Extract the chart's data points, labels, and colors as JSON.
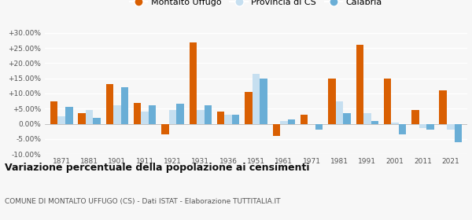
{
  "years": [
    1871,
    1881,
    1901,
    1911,
    1921,
    1931,
    1936,
    1951,
    1961,
    1971,
    1981,
    1991,
    2001,
    2011,
    2021
  ],
  "montalto": [
    7.5,
    3.5,
    13.0,
    7.0,
    -3.5,
    27.0,
    4.0,
    10.5,
    -4.0,
    3.0,
    15.0,
    26.0,
    15.0,
    4.5,
    11.0
  ],
  "provincia_cs": [
    2.5,
    4.5,
    6.0,
    4.0,
    4.5,
    4.5,
    3.0,
    16.5,
    1.0,
    0.0,
    7.5,
    3.5,
    0.5,
    -1.5,
    -2.0
  ],
  "calabria": [
    5.5,
    2.0,
    12.0,
    6.0,
    6.5,
    6.0,
    3.0,
    15.0,
    1.5,
    -2.0,
    3.5,
    1.0,
    -3.5,
    -2.0,
    -6.0
  ],
  "montalto_color": "#d95f02",
  "provincia_color": "#c6dff0",
  "calabria_color": "#6aaed6",
  "title": "Variazione percentuale della popolazione ai censimenti",
  "subtitle": "COMUNE DI MONTALTO UFFUGO (CS) - Dati ISTAT - Elaborazione TUTTITALIA.IT",
  "ylim": [
    -10,
    30
  ],
  "yticks": [
    -10,
    -5,
    0,
    5,
    10,
    15,
    20,
    25,
    30
  ],
  "bar_width": 0.27,
  "bg_color": "#f7f7f7"
}
